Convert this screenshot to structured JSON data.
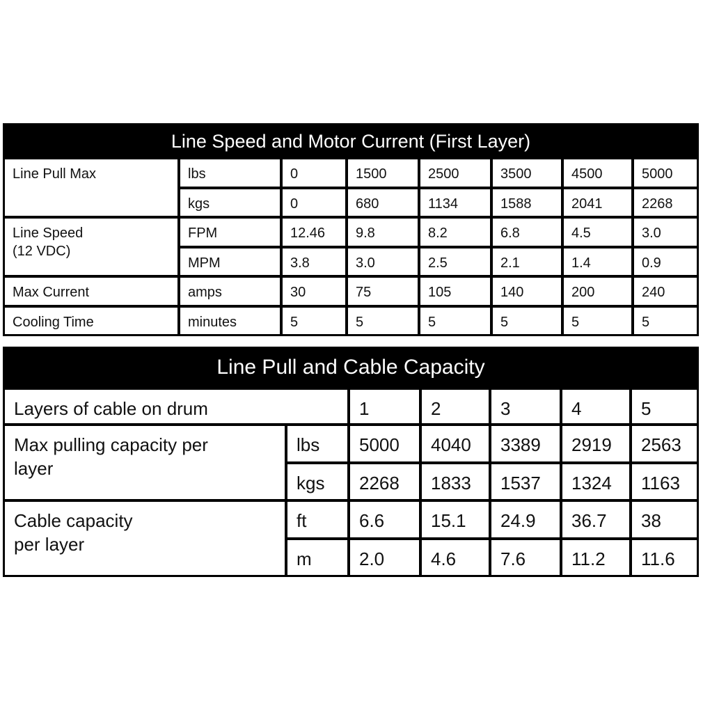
{
  "table1": {
    "title": "Line Speed and Motor Current (First Layer)",
    "groups": [
      {
        "label": "Line Pull Max",
        "rows": [
          {
            "unit": "lbs",
            "values": [
              "0",
              "1500",
              "2500",
              "3500",
              "4500",
              "5000"
            ]
          },
          {
            "unit": "kgs",
            "values": [
              "0",
              "680",
              "1134",
              "1588",
              "2041",
              "2268"
            ]
          }
        ]
      },
      {
        "label": "Line Speed\n(12 VDC)",
        "rows": [
          {
            "unit": "FPM",
            "values": [
              "12.46",
              "9.8",
              "8.2",
              "6.8",
              "4.5",
              "3.0"
            ]
          },
          {
            "unit": "MPM",
            "values": [
              "3.8",
              "3.0",
              "2.5",
              "2.1",
              "1.4",
              "0.9"
            ]
          }
        ]
      },
      {
        "label": "Max Current",
        "rows": [
          {
            "unit": "amps",
            "values": [
              "30",
              "75",
              "105",
              "140",
              "200",
              "240"
            ]
          }
        ]
      },
      {
        "label": "Cooling Time",
        "rows": [
          {
            "unit": "minutes",
            "values": [
              "5",
              "5",
              "5",
              "5",
              "5",
              "5"
            ]
          }
        ]
      }
    ]
  },
  "table2": {
    "title": "Line Pull and Cable Capacity",
    "header": {
      "label": "Layers of cable on drum",
      "values": [
        "1",
        "2",
        "3",
        "4",
        "5"
      ]
    },
    "groups": [
      {
        "label": "Max pulling capacity per layer",
        "rows": [
          {
            "unit": "lbs",
            "values": [
              "5000",
              "4040",
              "3389",
              "2919",
              "2563"
            ]
          },
          {
            "unit": "kgs",
            "values": [
              "2268",
              "1833",
              "1537",
              "1324",
              "1163"
            ]
          }
        ]
      },
      {
        "label": "Cable capacity\n per layer",
        "rows": [
          {
            "unit": "ft",
            "values": [
              "6.6",
              "15.1",
              "24.9",
              "36.7",
              "38"
            ]
          },
          {
            "unit": "m",
            "values": [
              "2.0",
              "4.6",
              "7.6",
              "11.2",
              "11.6"
            ]
          }
        ]
      }
    ]
  }
}
